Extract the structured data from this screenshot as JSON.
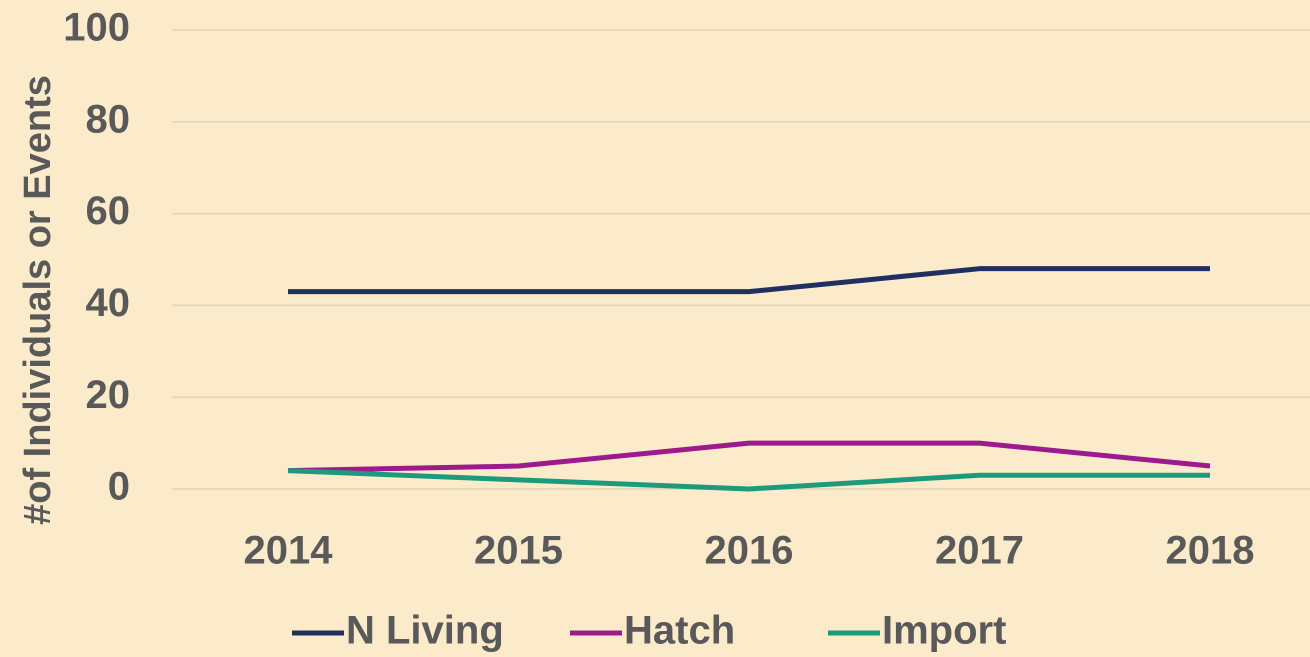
{
  "chart_data": {
    "type": "line",
    "y_label": "#of Individuals or Events",
    "categories": [
      "2014",
      "2015",
      "2016",
      "2017",
      "2018"
    ],
    "series": [
      {
        "name": "N Living",
        "color": "#1f2f5f",
        "values": [
          43,
          43,
          43,
          48,
          48
        ]
      },
      {
        "name": "Hatch",
        "color": "#9c1a8c",
        "values": [
          4,
          5,
          10,
          10,
          5
        ]
      },
      {
        "name": "Import",
        "color": "#1d9a7c",
        "values": [
          4,
          2,
          0,
          3,
          3
        ]
      }
    ],
    "ylim": [
      0,
      100
    ],
    "yticks": [
      0,
      20,
      40,
      60,
      80,
      100
    ],
    "grid": true,
    "legend": "bottom"
  }
}
